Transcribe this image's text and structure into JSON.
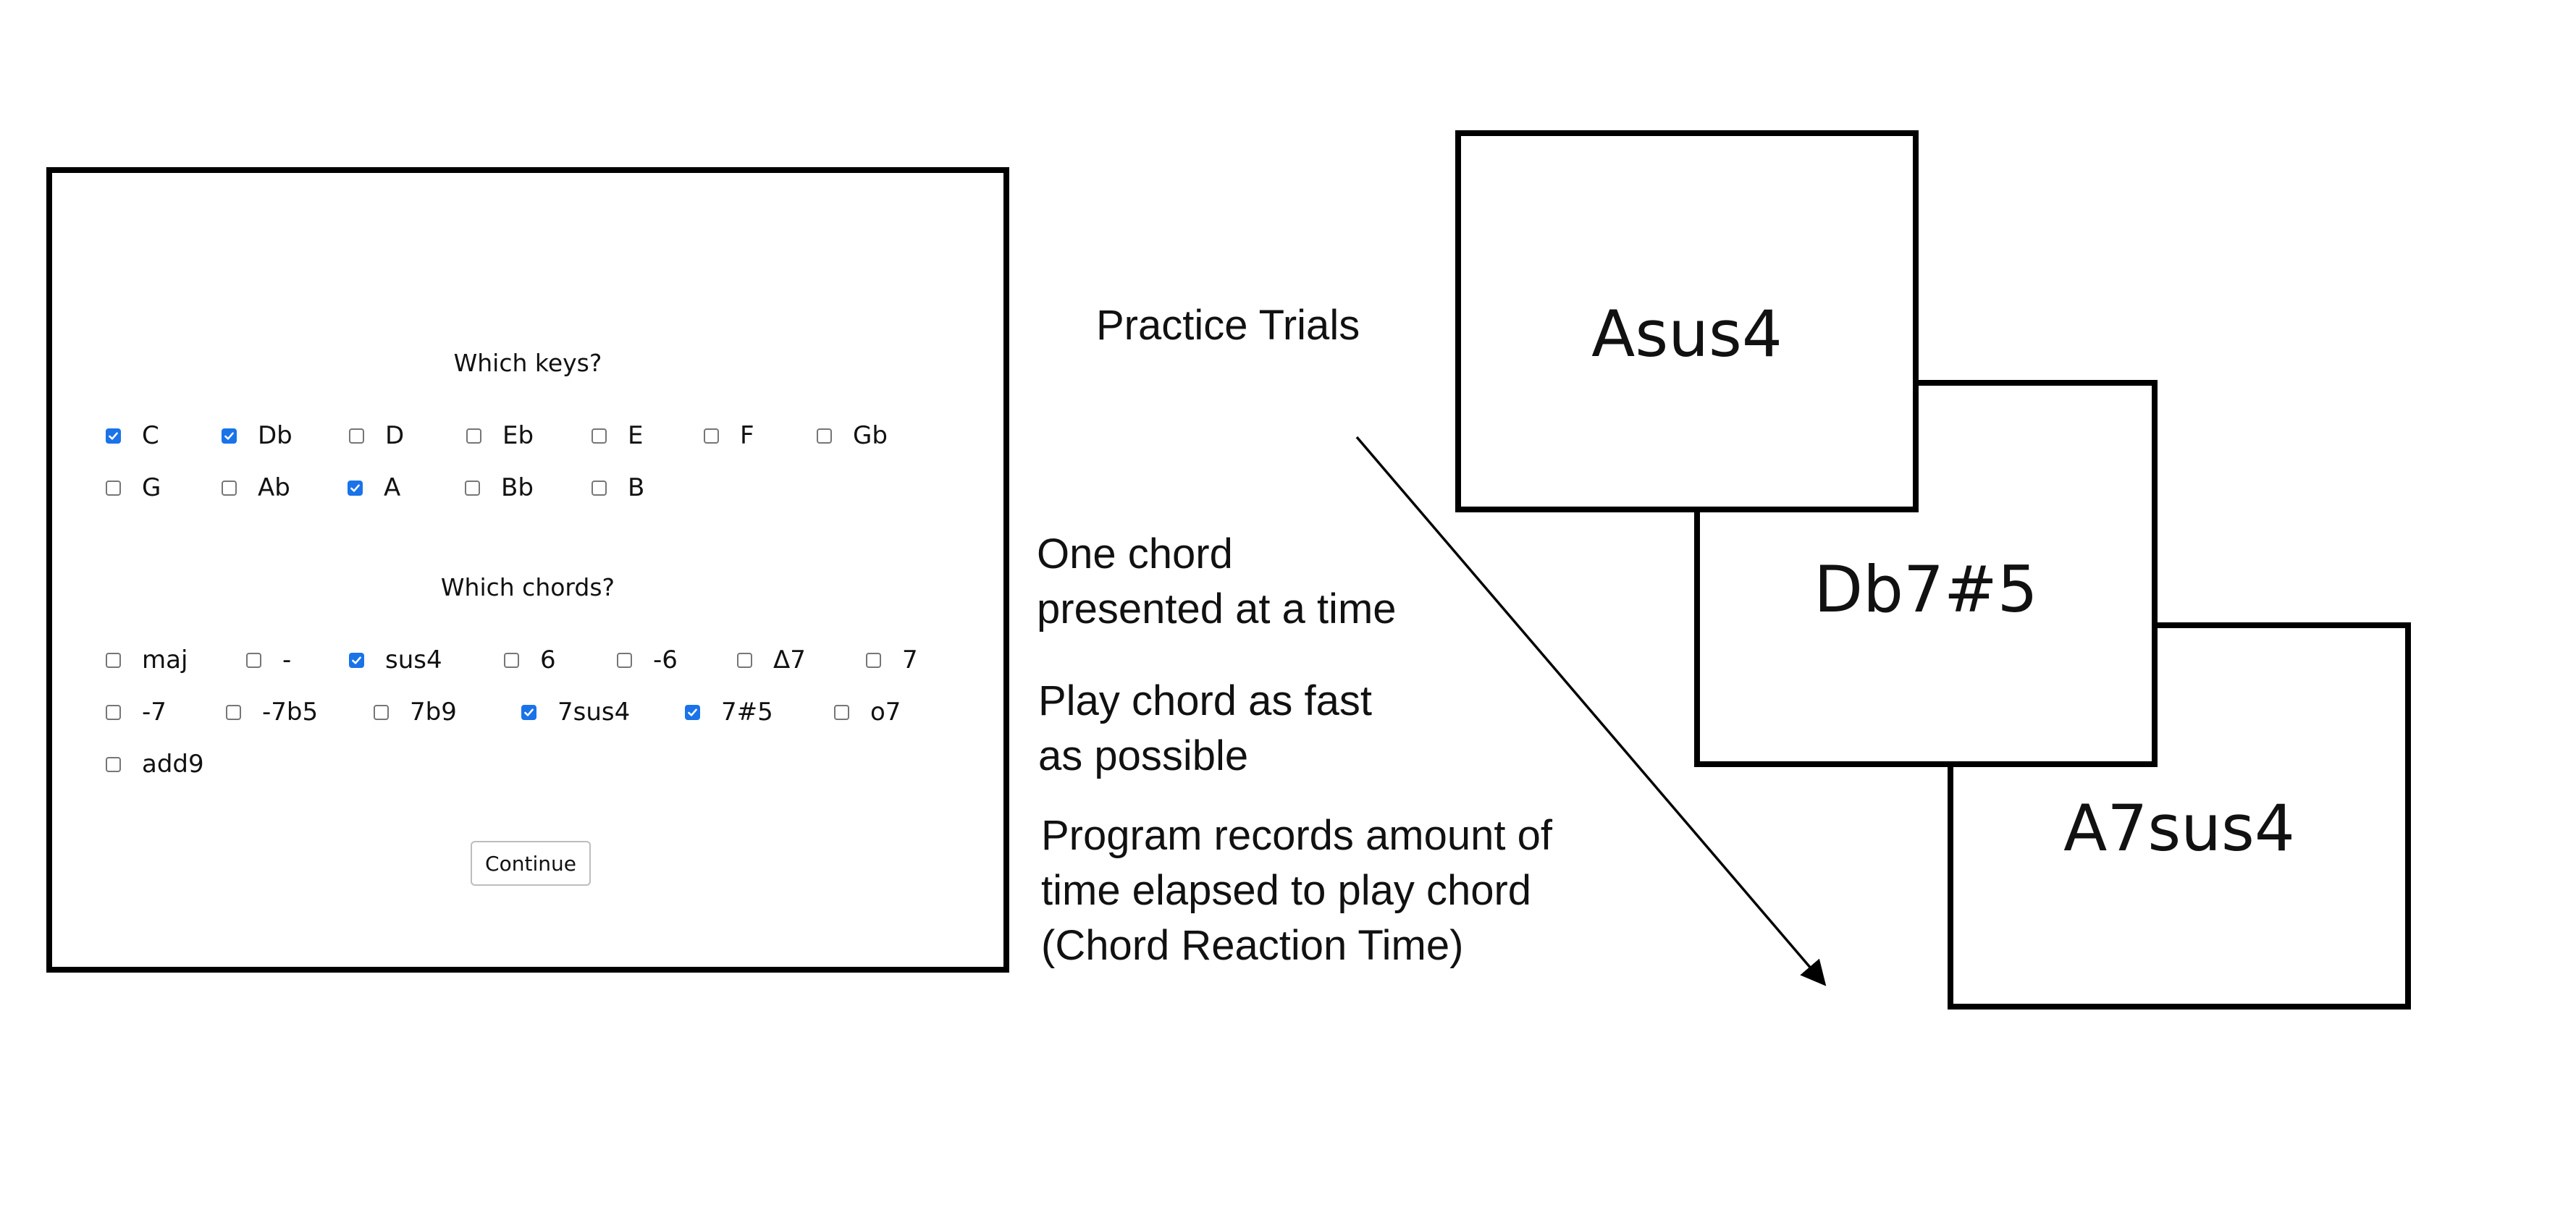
{
  "form": {
    "keys_heading": "Which keys?",
    "keys": [
      {
        "label": "C",
        "checked": true
      },
      {
        "label": "Db",
        "checked": true
      },
      {
        "label": "D",
        "checked": false
      },
      {
        "label": "Eb",
        "checked": false
      },
      {
        "label": "E",
        "checked": false
      },
      {
        "label": "F",
        "checked": false
      },
      {
        "label": "Gb",
        "checked": false
      },
      {
        "label": "G",
        "checked": false
      },
      {
        "label": "Ab",
        "checked": false
      },
      {
        "label": "A",
        "checked": true
      },
      {
        "label": "Bb",
        "checked": false
      },
      {
        "label": "B",
        "checked": false
      }
    ],
    "chords_heading": "Which chords?",
    "chords": [
      {
        "label": "maj",
        "checked": false
      },
      {
        "label": "-",
        "checked": false
      },
      {
        "label": "sus4",
        "checked": true
      },
      {
        "label": "6",
        "checked": false
      },
      {
        "label": "-6",
        "checked": false
      },
      {
        "label": "Δ7",
        "checked": false
      },
      {
        "label": "7",
        "checked": false
      },
      {
        "label": "-7",
        "checked": false
      },
      {
        "label": "-7b5",
        "checked": false
      },
      {
        "label": "7b9",
        "checked": false
      },
      {
        "label": "7sus4",
        "checked": true
      },
      {
        "label": "7#5",
        "checked": true
      },
      {
        "label": "o7",
        "checked": false
      },
      {
        "label": "add9",
        "checked": false
      }
    ],
    "continue_label": "Continue",
    "checkbox_color": "#1a73e8"
  },
  "annotations": {
    "practice_trials": "Practice Trials",
    "one_chord_line1": "One chord",
    "one_chord_line2": "presented at a time",
    "play_line1": "Play chord as fast",
    "play_line2": "as possible",
    "records_line1": "Program records amount of",
    "records_line2": "time elapsed to play chord",
    "records_line3": "(Chord Reaction Time)"
  },
  "cards": [
    "Asus4",
    "Db7#5",
    "A7sus4"
  ]
}
